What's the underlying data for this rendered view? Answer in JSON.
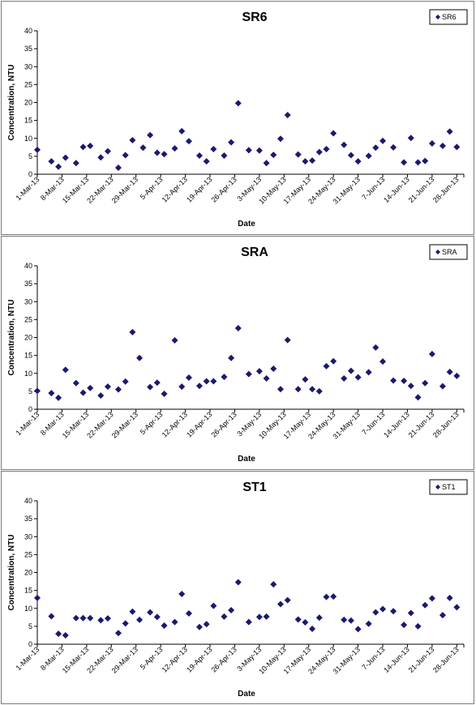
{
  "chart_data": [
    {
      "type": "scatter",
      "title": "SR6",
      "xlabel": "Date",
      "ylabel": "Concentration, NTU",
      "ylim": [
        0,
        40
      ],
      "yticks": [
        0,
        5,
        10,
        15,
        20,
        25,
        30,
        35,
        40
      ],
      "xlim": [
        "2013-03-01",
        "2013-06-30"
      ],
      "xtick_labels": [
        "1-Mar-13",
        "8-Mar-13",
        "15-Mar-13",
        "22-Mar-13",
        "29-Mar-13",
        "5-Apr-13",
        "12-Apr-13",
        "19-Apr-13",
        "26-Apr-13",
        "3-May-13",
        "10-May-13",
        "17-May-13",
        "24-May-13",
        "31-May-13",
        "7-Jun-13",
        "14-Jun-13",
        "21-Jun-13",
        "28-Jun-13"
      ],
      "legend_position": "top-right",
      "color": "#1a1a6e",
      "series": [
        {
          "name": "SR6",
          "x": [
            "2013-03-01",
            "2013-03-05",
            "2013-03-07",
            "2013-03-09",
            "2013-03-12",
            "2013-03-14",
            "2013-03-16",
            "2013-03-19",
            "2013-03-21",
            "2013-03-24",
            "2013-03-26",
            "2013-03-28",
            "2013-03-31",
            "2013-04-02",
            "2013-04-04",
            "2013-04-06",
            "2013-04-09",
            "2013-04-11",
            "2013-04-13",
            "2013-04-16",
            "2013-04-18",
            "2013-04-20",
            "2013-04-23",
            "2013-04-25",
            "2013-04-27",
            "2013-04-30",
            "2013-05-03",
            "2013-05-05",
            "2013-05-07",
            "2013-05-09",
            "2013-05-11",
            "2013-05-14",
            "2013-05-16",
            "2013-05-18",
            "2013-05-20",
            "2013-05-22",
            "2013-05-24",
            "2013-05-27",
            "2013-05-29",
            "2013-05-31",
            "2013-06-03",
            "2013-06-05",
            "2013-06-07",
            "2013-06-10",
            "2013-06-13",
            "2013-06-15",
            "2013-06-17",
            "2013-06-19",
            "2013-06-21",
            "2013-06-24",
            "2013-06-26",
            "2013-06-28"
          ],
          "y": [
            6.8,
            3.6,
            2.1,
            4.6,
            3.1,
            7.6,
            7.9,
            4.7,
            6.4,
            1.8,
            5.3,
            9.5,
            7.4,
            10.9,
            6.0,
            5.6,
            7.2,
            12.0,
            9.2,
            5.2,
            3.6,
            7.0,
            5.2,
            8.9,
            19.8,
            6.7,
            6.6,
            3.1,
            5.4,
            9.9,
            16.5,
            5.5,
            3.6,
            3.8,
            6.2,
            7.0,
            11.4,
            8.2,
            5.3,
            3.6,
            5.1,
            7.4,
            9.3,
            7.5,
            3.3,
            10.1,
            3.3,
            3.7,
            8.6,
            7.9,
            11.9,
            7.6
          ]
        }
      ]
    },
    {
      "type": "scatter",
      "title": "SRA",
      "xlabel": "Date",
      "ylabel": "Concentration, NTU",
      "ylim": [
        0,
        40
      ],
      "yticks": [
        0,
        5,
        10,
        15,
        20,
        25,
        30,
        35,
        40
      ],
      "xlim": [
        "2013-03-01",
        "2013-06-30"
      ],
      "xtick_labels": [
        "1-Mar-13",
        "8-Mar-13",
        "15-Mar-13",
        "22-Mar-13",
        "29-Mar-13",
        "5-Apr-13",
        "12-Apr-13",
        "19-Apr-13",
        "26-Apr-13",
        "3-May-13",
        "10-May-13",
        "17-May-13",
        "24-May-13",
        "31-May-13",
        "7-Jun-13",
        "14-Jun-13",
        "21-Jun-13",
        "28-Jun-13"
      ],
      "legend_position": "top-right",
      "color": "#1a1a6e",
      "series": [
        {
          "name": "SRA",
          "x": [
            "2013-03-01",
            "2013-03-05",
            "2013-03-07",
            "2013-03-09",
            "2013-03-12",
            "2013-03-14",
            "2013-03-16",
            "2013-03-19",
            "2013-03-21",
            "2013-03-24",
            "2013-03-26",
            "2013-03-28",
            "2013-03-30",
            "2013-04-02",
            "2013-04-04",
            "2013-04-06",
            "2013-04-09",
            "2013-04-11",
            "2013-04-13",
            "2013-04-16",
            "2013-04-18",
            "2013-04-20",
            "2013-04-23",
            "2013-04-25",
            "2013-04-27",
            "2013-04-30",
            "2013-05-03",
            "2013-05-05",
            "2013-05-07",
            "2013-05-09",
            "2013-05-11",
            "2013-05-14",
            "2013-05-16",
            "2013-05-18",
            "2013-05-20",
            "2013-05-22",
            "2013-05-24",
            "2013-05-27",
            "2013-05-29",
            "2013-05-31",
            "2013-06-03",
            "2013-06-05",
            "2013-06-07",
            "2013-06-10",
            "2013-06-13",
            "2013-06-15",
            "2013-06-17",
            "2013-06-19",
            "2013-06-21",
            "2013-06-24",
            "2013-06-26",
            "2013-06-28"
          ],
          "y": [
            5.1,
            4.5,
            3.2,
            11.0,
            7.3,
            4.6,
            5.9,
            3.8,
            6.3,
            5.5,
            7.7,
            21.5,
            14.3,
            6.2,
            7.4,
            4.3,
            19.2,
            6.3,
            8.8,
            6.5,
            7.8,
            7.8,
            9.0,
            14.3,
            22.6,
            9.8,
            10.6,
            8.6,
            11.3,
            5.6,
            19.3,
            5.6,
            8.3,
            5.6,
            5.0,
            12.0,
            13.4,
            8.6,
            10.7,
            8.9,
            10.3,
            17.2,
            13.3,
            8.0,
            7.9,
            6.5,
            3.3,
            7.3,
            15.4,
            6.4,
            10.4,
            9.3
          ]
        }
      ]
    },
    {
      "type": "scatter",
      "title": "ST1",
      "xlabel": "Date",
      "ylabel": "Concentration, NTU",
      "ylim": [
        0,
        40
      ],
      "yticks": [
        0,
        5,
        10,
        15,
        20,
        25,
        30,
        35,
        40
      ],
      "xlim": [
        "2013-03-01",
        "2013-06-30"
      ],
      "xtick_labels": [
        "1-Mar-13",
        "8-Mar-13",
        "15-Mar-13",
        "22-Mar-13",
        "29-Mar-13",
        "5-Apr-13",
        "12-Apr-13",
        "19-Apr-13",
        "26-Apr-13",
        "3-May-13",
        "10-May-13",
        "17-May-13",
        "24-May-13",
        "31-May-13",
        "7-Jun-13",
        "14-Jun-13",
        "21-Jun-13",
        "28-Jun-13"
      ],
      "legend_position": "top-right",
      "color": "#1a1a6e",
      "series": [
        {
          "name": "ST1",
          "x": [
            "2013-03-01",
            "2013-03-05",
            "2013-03-07",
            "2013-03-09",
            "2013-03-12",
            "2013-03-14",
            "2013-03-16",
            "2013-03-19",
            "2013-03-21",
            "2013-03-24",
            "2013-03-26",
            "2013-03-28",
            "2013-03-30",
            "2013-04-02",
            "2013-04-04",
            "2013-04-06",
            "2013-04-09",
            "2013-04-11",
            "2013-04-13",
            "2013-04-16",
            "2013-04-18",
            "2013-04-20",
            "2013-04-23",
            "2013-04-25",
            "2013-04-27",
            "2013-04-30",
            "2013-05-03",
            "2013-05-05",
            "2013-05-07",
            "2013-05-09",
            "2013-05-11",
            "2013-05-14",
            "2013-05-16",
            "2013-05-18",
            "2013-05-20",
            "2013-05-22",
            "2013-05-24",
            "2013-05-27",
            "2013-05-29",
            "2013-05-31",
            "2013-06-03",
            "2013-06-05",
            "2013-06-07",
            "2013-06-10",
            "2013-06-13",
            "2013-06-15",
            "2013-06-17",
            "2013-06-19",
            "2013-06-21",
            "2013-06-24",
            "2013-06-26",
            "2013-06-28"
          ],
          "y": [
            12.9,
            7.8,
            2.9,
            2.5,
            7.3,
            7.3,
            7.3,
            6.7,
            7.2,
            3.1,
            5.8,
            9.1,
            6.8,
            8.9,
            7.6,
            5.2,
            6.2,
            14.0,
            8.6,
            4.8,
            5.6,
            10.7,
            7.7,
            9.5,
            17.3,
            6.2,
            7.6,
            7.7,
            16.7,
            11.2,
            12.3,
            6.9,
            6.1,
            4.3,
            7.4,
            13.2,
            13.3,
            6.8,
            6.6,
            4.2,
            5.7,
            8.9,
            9.8,
            9.2,
            5.4,
            8.7,
            5.0,
            10.9,
            12.8,
            8.1,
            12.9,
            10.3
          ]
        }
      ]
    }
  ]
}
